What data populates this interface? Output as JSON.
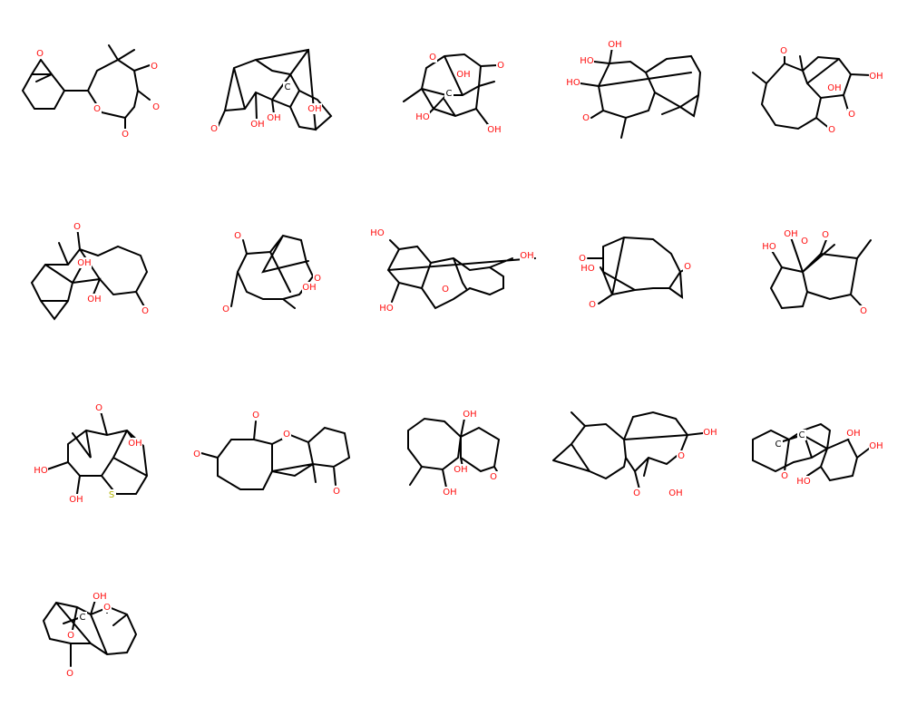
{
  "colors": {
    "bond": "#000000",
    "oxygen": "#ff0d0d",
    "sulfur": "#b2b200",
    "carbon": "#000000",
    "background": "#ffffff"
  },
  "molecules": [
    {
      "name": "molecule-1",
      "atoms": [
        {
          "label": "O",
          "element": "O"
        },
        {
          "label": "O",
          "element": "O"
        },
        {
          "label": "O",
          "element": "O"
        },
        {
          "label": "O",
          "element": "O"
        },
        {
          "label": "O",
          "element": "O"
        }
      ]
    },
    {
      "name": "molecule-2",
      "atoms": [
        {
          "label": "C",
          "element": "C"
        },
        {
          "label": "O",
          "element": "O"
        },
        {
          "label": "OH",
          "element": "O"
        },
        {
          "label": "OH",
          "element": "O"
        },
        {
          "label": "OH",
          "element": "O"
        }
      ]
    },
    {
      "name": "molecule-3",
      "atoms": [
        {
          "label": "O",
          "element": "O"
        },
        {
          "label": "OH",
          "element": "O"
        },
        {
          "label": "C",
          "element": "C"
        },
        {
          "label": "O",
          "element": "O"
        },
        {
          "label": "HO",
          "element": "O"
        },
        {
          "label": "OH",
          "element": "O"
        }
      ]
    },
    {
      "name": "molecule-4",
      "atoms": [
        {
          "label": "OH",
          "element": "O"
        },
        {
          "label": "HO",
          "element": "O"
        },
        {
          "label": "HO",
          "element": "O"
        },
        {
          "label": "O",
          "element": "O"
        }
      ]
    },
    {
      "name": "molecule-5",
      "atoms": [
        {
          "label": "O",
          "element": "O"
        },
        {
          "label": "OH",
          "element": "O"
        },
        {
          "label": "OH",
          "element": "O"
        },
        {
          "label": "O",
          "element": "O"
        },
        {
          "label": "O",
          "element": "O"
        }
      ]
    },
    {
      "name": "molecule-6",
      "atoms": [
        {
          "label": "O",
          "element": "O"
        },
        {
          "label": "OH",
          "element": "O"
        },
        {
          "label": "OH",
          "element": "O"
        },
        {
          "label": "O",
          "element": "O"
        }
      ]
    },
    {
      "name": "molecule-7",
      "atoms": [
        {
          "label": "O",
          "element": "O"
        },
        {
          "label": "O",
          "element": "O"
        },
        {
          "label": "OH",
          "element": "O"
        },
        {
          "label": "O",
          "element": "O"
        }
      ]
    },
    {
      "name": "molecule-8",
      "atoms": [
        {
          "label": "HO",
          "element": "O"
        },
        {
          "label": "OH",
          "element": "O"
        },
        {
          "label": "O",
          "element": "O"
        },
        {
          "label": "HO",
          "element": "O"
        }
      ]
    },
    {
      "name": "molecule-9",
      "atoms": [
        {
          "label": "O",
          "element": "O"
        },
        {
          "label": "HO",
          "element": "O"
        },
        {
          "label": "O",
          "element": "O"
        },
        {
          "label": "O",
          "element": "O"
        }
      ]
    },
    {
      "name": "molecule-10",
      "atoms": [
        {
          "label": "HO",
          "element": "O"
        },
        {
          "label": "OH",
          "element": "O"
        },
        {
          "label": "O",
          "element": "O"
        },
        {
          "label": "O",
          "element": "O"
        },
        {
          "label": "O",
          "element": "O"
        }
      ]
    },
    {
      "name": "molecule-11",
      "atoms": [
        {
          "label": "O",
          "element": "O"
        },
        {
          "label": "OH",
          "element": "O"
        },
        {
          "label": "HO",
          "element": "O"
        },
        {
          "label": "OH",
          "element": "O"
        },
        {
          "label": "S",
          "element": "S"
        }
      ]
    },
    {
      "name": "molecule-12",
      "atoms": [
        {
          "label": "O",
          "element": "O"
        },
        {
          "label": "O",
          "element": "O"
        },
        {
          "label": "O",
          "element": "O"
        },
        {
          "label": "O",
          "element": "O"
        }
      ]
    },
    {
      "name": "molecule-13",
      "atoms": [
        {
          "label": "OH",
          "element": "O"
        },
        {
          "label": "OH",
          "element": "O"
        },
        {
          "label": "O",
          "element": "O"
        },
        {
          "label": "OH",
          "element": "O"
        }
      ]
    },
    {
      "name": "molecule-14",
      "atoms": [
        {
          "label": "OH",
          "element": "O"
        },
        {
          "label": "O",
          "element": "O"
        },
        {
          "label": "O",
          "element": "O"
        },
        {
          "label": "OH",
          "element": "O"
        }
      ]
    },
    {
      "name": "molecule-15",
      "atoms": [
        {
          "label": "C",
          "element": "C"
        },
        {
          "label": "C",
          "element": "C"
        },
        {
          "label": "OH",
          "element": "O"
        },
        {
          "label": "OH",
          "element": "O"
        },
        {
          "label": "O",
          "element": "O"
        },
        {
          "label": "HO",
          "element": "O"
        }
      ]
    },
    {
      "name": "molecule-16",
      "atoms": [
        {
          "label": "OH",
          "element": "O"
        },
        {
          "label": "O",
          "element": "O"
        },
        {
          "label": "C",
          "element": "C"
        },
        {
          "label": "O",
          "element": "O"
        },
        {
          "label": "O",
          "element": "O"
        }
      ]
    }
  ]
}
